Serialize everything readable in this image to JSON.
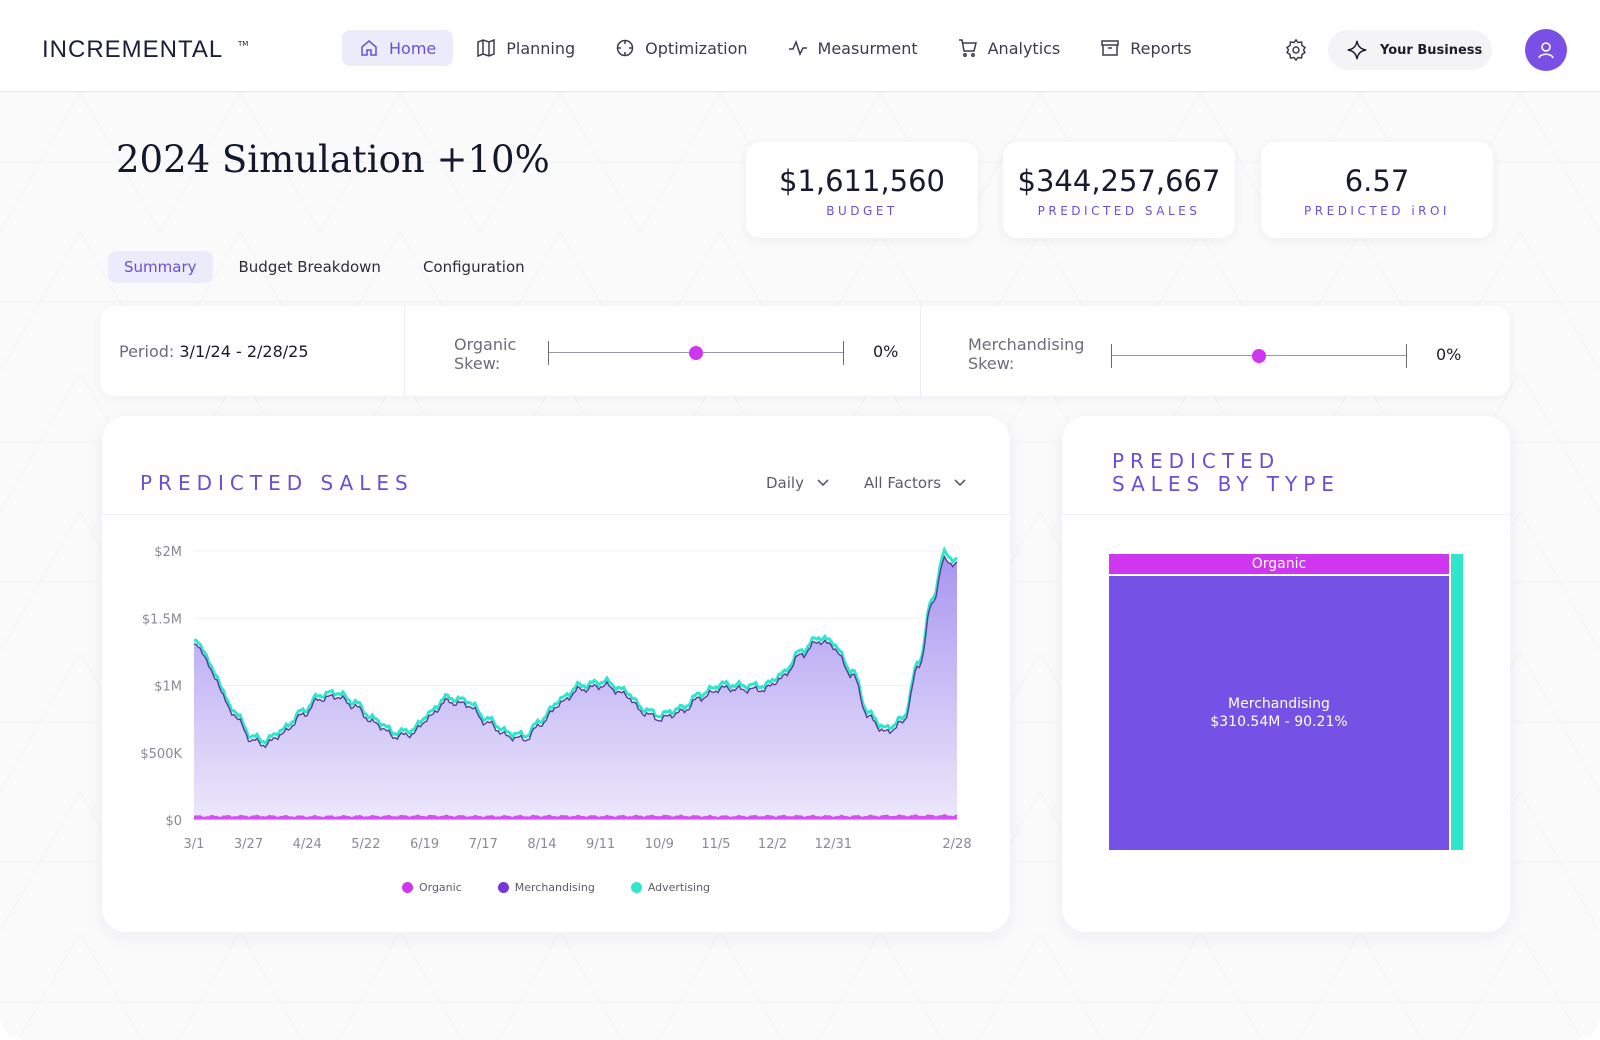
{
  "brand": {
    "logo": "INCREMENTAL",
    "tm": "TM"
  },
  "nav": [
    {
      "label": "Home",
      "icon": "home-icon",
      "active": true
    },
    {
      "label": "Planning",
      "icon": "map-icon"
    },
    {
      "label": "Optimization",
      "icon": "crosshair-icon"
    },
    {
      "label": "Measurment",
      "icon": "pulse-icon"
    },
    {
      "label": "Analytics",
      "icon": "cart-icon"
    },
    {
      "label": "Reports",
      "icon": "archive-icon"
    }
  ],
  "header": {
    "business_label": "Your Business"
  },
  "page": {
    "title": "2024 Simulation +10%"
  },
  "kpis": [
    {
      "value": "$1,611,560",
      "label": "BUDGET"
    },
    {
      "value": "$344,257,667",
      "label": "PREDICTED SALES"
    },
    {
      "value": "6.57",
      "label": "PREDICTED iROI"
    }
  ],
  "tabs": [
    {
      "label": "Summary",
      "active": true
    },
    {
      "label": "Budget Breakdown"
    },
    {
      "label": "Configuration"
    }
  ],
  "controls": {
    "period_label": "Period:",
    "period_value": "3/1/24 - 2/28/25",
    "organic_skew": {
      "label": "Organic Skew:",
      "value": "0%",
      "position": 0.5
    },
    "merch_skew": {
      "label": "Merchandising Skew:",
      "value": "0%",
      "position": 0.5
    }
  },
  "predicted_sales": {
    "title": "PREDICTED SALES",
    "granularity": "Daily",
    "factors": "All Factors"
  },
  "by_type": {
    "title_line1": "PREDICTED",
    "title_line2": "SALES BY TYPE",
    "organic_label": "Organic",
    "merch_label": "Merchandising",
    "merch_detail": "$310.54M - 90.21%"
  },
  "colors": {
    "organic": "#cf36f0",
    "merchandising": "#7651e6",
    "advertising": "#2de6cb",
    "accent": "#6a4fd6"
  },
  "chart_data": [
    {
      "type": "area",
      "x_ticks": [
        "3/1",
        "3/27",
        "4/24",
        "5/22",
        "6/19",
        "7/17",
        "8/14",
        "9/11",
        "10/9",
        "11/5",
        "12/2",
        "12/31",
        "2/28"
      ],
      "y_ticks": [
        "$2M",
        "$1.5M",
        "$1M",
        "$500K",
        "$0"
      ],
      "ylim": [
        0,
        2000000
      ],
      "x_days": [
        0,
        26,
        54,
        82,
        110,
        138,
        166,
        194,
        222,
        249,
        276,
        305,
        364
      ],
      "grid": true,
      "legend_position": "bottom",
      "series": [
        {
          "name": "Organic",
          "color": "#cf36f0",
          "x": [
            0,
            28,
            56,
            84,
            112,
            140,
            168,
            196,
            224,
            252,
            280,
            308,
            336,
            364
          ],
          "values": [
            30000,
            32000,
            29000,
            31000,
            33000,
            30000,
            32000,
            31000,
            33000,
            30000,
            32000,
            31000,
            34000,
            36000
          ]
        },
        {
          "name": "Merchandising",
          "color": "#7651e6",
          "x": [
            0,
            4,
            10,
            18,
            28,
            34,
            42,
            52,
            60,
            68,
            76,
            86,
            96,
            104,
            112,
            120,
            130,
            140,
            150,
            158,
            166,
            174,
            184,
            196,
            206,
            214,
            222,
            232,
            242,
            252,
            262,
            272,
            280,
            290,
            298,
            304,
            314,
            322,
            330,
            338,
            346,
            352,
            358,
            364
          ],
          "values": [
            1300000,
            1250000,
            1050000,
            800000,
            590000,
            560000,
            640000,
            780000,
            900000,
            920000,
            850000,
            720000,
            620000,
            640000,
            760000,
            880000,
            860000,
            720000,
            620000,
            600000,
            720000,
            860000,
            970000,
            1000000,
            930000,
            800000,
            750000,
            800000,
            910000,
            980000,
            970000,
            970000,
            1050000,
            1230000,
            1330000,
            1300000,
            1080000,
            760000,
            650000,
            720000,
            1150000,
            1600000,
            1930000,
            1900000
          ]
        },
        {
          "name": "Advertising",
          "color": "#2de6cb",
          "x": [
            0,
            4,
            10,
            18,
            28,
            34,
            42,
            52,
            60,
            68,
            76,
            86,
            96,
            104,
            112,
            120,
            130,
            140,
            150,
            158,
            166,
            174,
            184,
            196,
            206,
            214,
            222,
            232,
            242,
            252,
            262,
            272,
            280,
            290,
            298,
            304,
            314,
            322,
            330,
            338,
            346,
            352,
            358,
            364
          ],
          "values": [
            1330000,
            1280000,
            1080000,
            830000,
            620000,
            590000,
            670000,
            810000,
            930000,
            950000,
            880000,
            750000,
            650000,
            670000,
            790000,
            910000,
            890000,
            750000,
            650000,
            630000,
            750000,
            890000,
            1000000,
            1030000,
            960000,
            830000,
            780000,
            830000,
            940000,
            1010000,
            1000000,
            1000000,
            1080000,
            1260000,
            1360000,
            1330000,
            1110000,
            790000,
            680000,
            750000,
            1180000,
            1630000,
            1980000,
            1930000
          ]
        }
      ]
    },
    {
      "type": "treemap",
      "series": [
        {
          "name": "Merchandising",
          "value": 310.54,
          "share": 90.21
        },
        {
          "name": "Organic",
          "share": 6.2
        },
        {
          "name": "Advertising",
          "share": 3.6
        }
      ]
    }
  ]
}
